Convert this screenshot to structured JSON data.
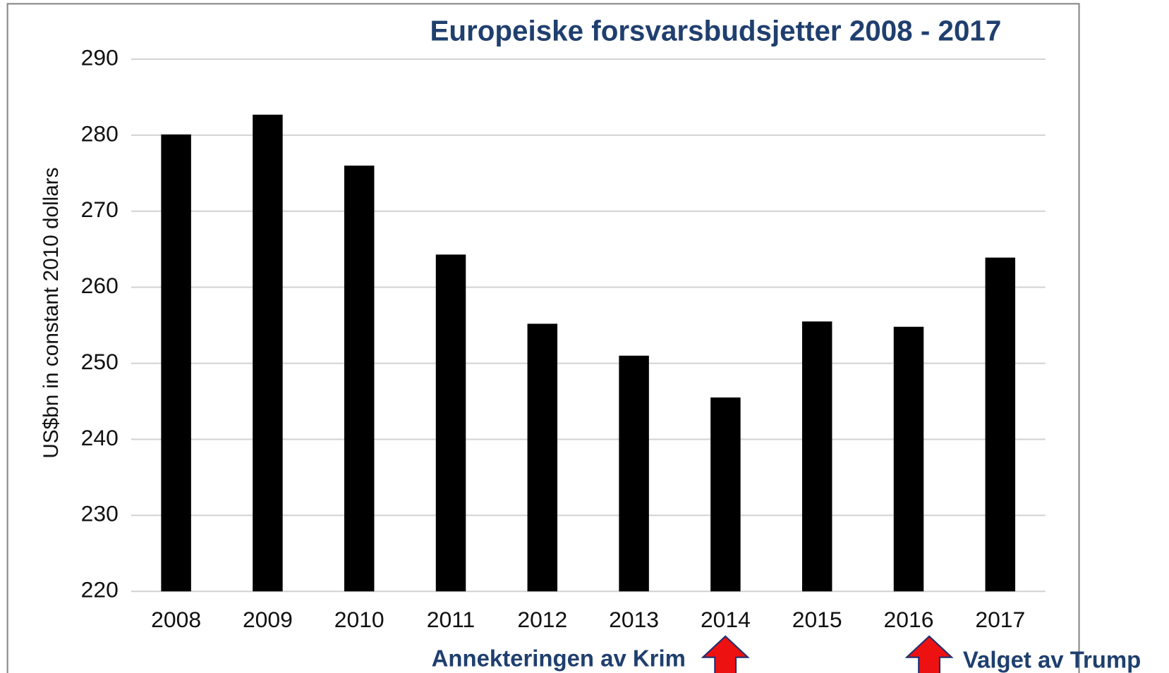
{
  "chart_data": {
    "type": "bar",
    "title": "Europeiske forsvarsbudsjetter 2008 - 2017",
    "y_label": "US$bn in constant 2010 dollars",
    "categories": [
      "2008",
      "2009",
      "2010",
      "2011",
      "2012",
      "2013",
      "2014",
      "2015",
      "2016",
      "2017"
    ],
    "values": [
      280.1,
      282.7,
      276.0,
      264.3,
      255.2,
      251.0,
      245.5,
      255.5,
      254.8,
      263.9
    ],
    "color": "#000000",
    "ylim": [
      220,
      290
    ],
    "yticks": [
      220,
      230,
      240,
      250,
      260,
      270,
      280,
      290
    ],
    "grid": true,
    "annotations": [
      "Annekteringen av Krim",
      "Valget av Trump"
    ]
  }
}
